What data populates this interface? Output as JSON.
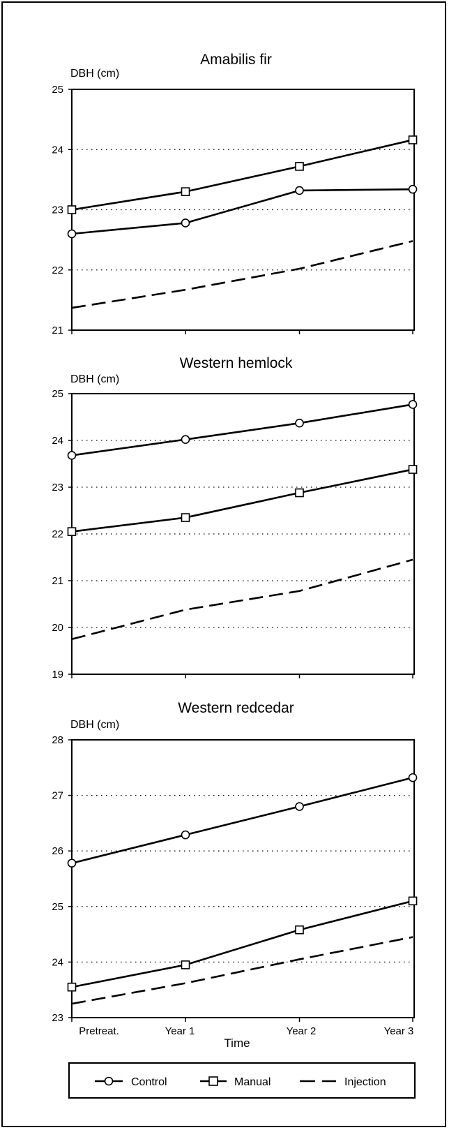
{
  "chart_data": [
    {
      "type": "line",
      "title": "Amabilis fir",
      "ylabel": "DBH (cm)",
      "xlabel": "",
      "categories": [
        "Pretreat.",
        "Year 1",
        "Year 2",
        "Year 3"
      ],
      "ylim": [
        21,
        25
      ],
      "yticks": [
        21,
        22,
        23,
        24,
        25
      ],
      "grid": "horizontal dotted",
      "series": [
        {
          "name": "Control",
          "marker": "circle",
          "style": "solid",
          "values": [
            22.6,
            22.78,
            23.32,
            23.34
          ]
        },
        {
          "name": "Manual",
          "marker": "square",
          "style": "solid",
          "values": [
            23.0,
            23.3,
            23.72,
            24.16
          ]
        },
        {
          "name": "Injection",
          "marker": "none",
          "style": "dashed",
          "values": [
            21.37,
            21.67,
            22.02,
            22.48
          ]
        }
      ]
    },
    {
      "type": "line",
      "title": "Western hemlock",
      "ylabel": "DBH (cm)",
      "xlabel": "",
      "categories": [
        "Pretreat.",
        "Year 1",
        "Year 2",
        "Year 3"
      ],
      "ylim": [
        19,
        25
      ],
      "yticks": [
        19,
        20,
        21,
        22,
        23,
        24,
        25
      ],
      "grid": "horizontal dotted",
      "series": [
        {
          "name": "Control",
          "marker": "circle",
          "style": "solid",
          "values": [
            23.68,
            24.02,
            24.37,
            24.77
          ]
        },
        {
          "name": "Manual",
          "marker": "square",
          "style": "solid",
          "values": [
            22.05,
            22.35,
            22.88,
            23.38
          ]
        },
        {
          "name": "Injection",
          "marker": "none",
          "style": "dashed",
          "values": [
            19.75,
            20.38,
            20.78,
            21.45
          ]
        }
      ]
    },
    {
      "type": "line",
      "title": "Western redcedar",
      "ylabel": "DBH (cm)",
      "xlabel": "Time",
      "categories": [
        "Pretreat.",
        "Year 1",
        "Year 2",
        "Year 3"
      ],
      "ylim": [
        23,
        28
      ],
      "yticks": [
        23,
        24,
        25,
        26,
        27,
        28
      ],
      "grid": "horizontal dotted",
      "series": [
        {
          "name": "Control",
          "marker": "circle",
          "style": "solid",
          "values": [
            25.78,
            26.29,
            26.8,
            27.32
          ]
        },
        {
          "name": "Manual",
          "marker": "square",
          "style": "solid",
          "values": [
            23.55,
            23.95,
            24.58,
            25.1
          ]
        },
        {
          "name": "Injection",
          "marker": "none",
          "style": "dashed",
          "values": [
            23.25,
            23.62,
            24.05,
            24.45
          ]
        }
      ]
    }
  ],
  "legend": {
    "placement": "bottom",
    "items": [
      {
        "label": "Control",
        "marker": "circle",
        "style": "solid"
      },
      {
        "label": "Manual",
        "marker": "square",
        "style": "solid"
      },
      {
        "label": "Injection",
        "marker": "none",
        "style": "dashed"
      }
    ]
  }
}
